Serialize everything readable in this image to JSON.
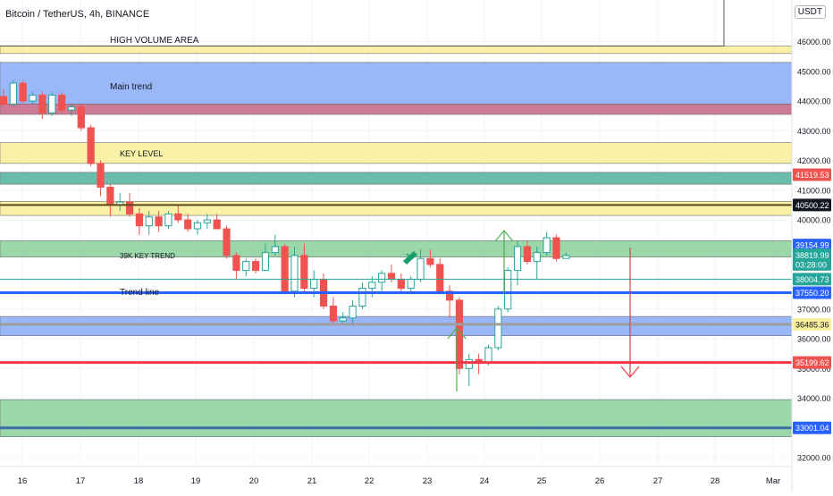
{
  "header": {
    "symbol_title": "Bitcoin / TetherUS, 4h, BINANCE",
    "currency": "USDT"
  },
  "colors": {
    "bull": "#26a69a",
    "bear": "#ef5350",
    "yellow_zone": "#f7ef9c",
    "blue_zone": "#8fb0f7",
    "green_zone": "#8fd3a0",
    "teal_zone": "#5bb5a2",
    "pink_zone": "#c76b8a",
    "blue_line": "#2962ff",
    "red_line": "#f23645",
    "yellow_line": "#e6d96a"
  },
  "chart_data": {
    "type": "candlestick",
    "title": "Bitcoin / TetherUS, 4h, BINANCE",
    "ylim": [
      31700,
      47400
    ],
    "y_ticks": [
      "32000.00",
      "33000.00",
      "34000.00",
      "35000.00",
      "36000.00",
      "37000.00",
      "38000.00",
      "39000.00",
      "40000.00",
      "41000.00",
      "42000.00",
      "43000.00",
      "44000.00",
      "45000.00",
      "46000.00"
    ],
    "x_ticks": [
      "16",
      "17",
      "18",
      "19",
      "20",
      "21",
      "22",
      "23",
      "24",
      "25",
      "26",
      "27",
      "28",
      "Mar"
    ],
    "candles": [
      {
        "o": 44150,
        "h": 44400,
        "l": 43850,
        "c": 43900
      },
      {
        "o": 43900,
        "h": 44700,
        "l": 43800,
        "c": 44600
      },
      {
        "o": 44600,
        "h": 44700,
        "l": 43900,
        "c": 44000
      },
      {
        "o": 44000,
        "h": 44300,
        "l": 43900,
        "c": 44200
      },
      {
        "o": 44200,
        "h": 44300,
        "l": 43400,
        "c": 43600
      },
      {
        "o": 43600,
        "h": 44300,
        "l": 43500,
        "c": 44200
      },
      {
        "o": 44200,
        "h": 44300,
        "l": 43600,
        "c": 43700
      },
      {
        "o": 43700,
        "h": 43900,
        "l": 43500,
        "c": 43800
      },
      {
        "o": 43800,
        "h": 43900,
        "l": 43000,
        "c": 43100
      },
      {
        "o": 43100,
        "h": 43200,
        "l": 41800,
        "c": 41900
      },
      {
        "o": 41900,
        "h": 42000,
        "l": 40800,
        "c": 41100
      },
      {
        "o": 41100,
        "h": 41200,
        "l": 40100,
        "c": 40500
      },
      {
        "o": 40500,
        "h": 40900,
        "l": 40300,
        "c": 40600
      },
      {
        "o": 40600,
        "h": 40900,
        "l": 40100,
        "c": 40200
      },
      {
        "o": 40200,
        "h": 40400,
        "l": 39500,
        "c": 39800
      },
      {
        "o": 39800,
        "h": 40300,
        "l": 39500,
        "c": 40100
      },
      {
        "o": 40100,
        "h": 40300,
        "l": 39600,
        "c": 39800
      },
      {
        "o": 39800,
        "h": 40300,
        "l": 39700,
        "c": 40200
      },
      {
        "o": 40200,
        "h": 40500,
        "l": 39900,
        "c": 40000
      },
      {
        "o": 40000,
        "h": 40200,
        "l": 39600,
        "c": 39700
      },
      {
        "o": 39700,
        "h": 40000,
        "l": 39500,
        "c": 39900
      },
      {
        "o": 39900,
        "h": 40200,
        "l": 39700,
        "c": 40000
      },
      {
        "o": 40000,
        "h": 40200,
        "l": 39700,
        "c": 39700
      },
      {
        "o": 39700,
        "h": 39800,
        "l": 38700,
        "c": 38800
      },
      {
        "o": 38800,
        "h": 38900,
        "l": 38000,
        "c": 38300
      },
      {
        "o": 38300,
        "h": 38700,
        "l": 38100,
        "c": 38600
      },
      {
        "o": 38600,
        "h": 38700,
        "l": 38200,
        "c": 38300
      },
      {
        "o": 38300,
        "h": 39200,
        "l": 38300,
        "c": 38900
      },
      {
        "o": 38900,
        "h": 39500,
        "l": 38800,
        "c": 39100
      },
      {
        "o": 39100,
        "h": 39200,
        "l": 37500,
        "c": 37600
      },
      {
        "o": 37600,
        "h": 39100,
        "l": 37400,
        "c": 38800
      },
      {
        "o": 38800,
        "h": 39200,
        "l": 37600,
        "c": 37700
      },
      {
        "o": 37700,
        "h": 38300,
        "l": 37400,
        "c": 38000
      },
      {
        "o": 38000,
        "h": 38200,
        "l": 37000,
        "c": 37100
      },
      {
        "o": 37100,
        "h": 37400,
        "l": 36500,
        "c": 36600
      },
      {
        "o": 36600,
        "h": 36900,
        "l": 36500,
        "c": 36700
      },
      {
        "o": 36700,
        "h": 37300,
        "l": 36500,
        "c": 37100
      },
      {
        "o": 37100,
        "h": 37900,
        "l": 37000,
        "c": 37700
      },
      {
        "o": 37700,
        "h": 38100,
        "l": 37400,
        "c": 37900
      },
      {
        "o": 37900,
        "h": 38300,
        "l": 37600,
        "c": 38200
      },
      {
        "o": 38200,
        "h": 38500,
        "l": 37900,
        "c": 38000
      },
      {
        "o": 38000,
        "h": 38200,
        "l": 37600,
        "c": 37700
      },
      {
        "o": 37700,
        "h": 38100,
        "l": 37500,
        "c": 38000
      },
      {
        "o": 38000,
        "h": 39000,
        "l": 37900,
        "c": 38700
      },
      {
        "o": 38700,
        "h": 39000,
        "l": 38400,
        "c": 38500
      },
      {
        "o": 38500,
        "h": 38700,
        "l": 37500,
        "c": 37600
      },
      {
        "o": 37600,
        "h": 37800,
        "l": 36700,
        "c": 37300
      },
      {
        "o": 37300,
        "h": 37400,
        "l": 34800,
        "c": 35000
      },
      {
        "o": 35000,
        "h": 35500,
        "l": 34400,
        "c": 35300
      },
      {
        "o": 35300,
        "h": 35500,
        "l": 34800,
        "c": 35200
      },
      {
        "o": 35200,
        "h": 35800,
        "l": 35100,
        "c": 35700
      },
      {
        "o": 35700,
        "h": 37100,
        "l": 35600,
        "c": 37000
      },
      {
        "o": 37000,
        "h": 38400,
        "l": 36900,
        "c": 38300
      },
      {
        "o": 38300,
        "h": 39300,
        "l": 37800,
        "c": 39100
      },
      {
        "o": 39100,
        "h": 39300,
        "l": 38500,
        "c": 38600
      },
      {
        "o": 38600,
        "h": 39100,
        "l": 38000,
        "c": 38900
      },
      {
        "o": 38900,
        "h": 39600,
        "l": 38800,
        "c": 39400
      },
      {
        "o": 39400,
        "h": 39500,
        "l": 38600,
        "c": 38700
      },
      {
        "o": 38700,
        "h": 38900,
        "l": 38700,
        "c": 38800
      }
    ],
    "zones": [
      {
        "name": "high-volume-zone",
        "low": 45600,
        "high": 45850,
        "color": "#f7ef9c"
      },
      {
        "name": "main-trend-zone",
        "low": 43900,
        "high": 45300,
        "color": "#8fb0f7"
      },
      {
        "name": "main-trend-pink-zone",
        "low": 43550,
        "high": 43900,
        "color": "#c76b8a"
      },
      {
        "name": "key-level-zone",
        "low": 41900,
        "high": 42600,
        "color": "#f7ef9c"
      },
      {
        "name": "teal-zone",
        "low": 41200,
        "high": 41600,
        "color": "#5bb5a2"
      },
      {
        "name": "yellow-40500-zone",
        "low": 40150,
        "high": 40620,
        "color": "#f7ef9c"
      },
      {
        "name": "key-trend-39k-zone",
        "low": 38750,
        "high": 39300,
        "color": "#8fd3a0"
      },
      {
        "name": "blue-36485-zone",
        "low": 36100,
        "high": 36750,
        "color": "#8fb0f7"
      },
      {
        "name": "green-bottom-zone",
        "low": 32700,
        "high": 33950,
        "color": "#8fd3a0"
      }
    ],
    "lines": [
      {
        "name": "trend-line",
        "price": 37550.2,
        "color": "#2962ff",
        "width": 3
      },
      {
        "name": "red-support-line",
        "price": 35199.62,
        "color": "#f23645",
        "width": 3
      },
      {
        "name": "yellow-40500-line",
        "price": 40500.22,
        "color": "#5a4a1a",
        "width": 2
      },
      {
        "name": "teal-38004-line",
        "price": 38004.73,
        "color": "#26a69a",
        "width": 1
      },
      {
        "name": "blue-33001-line",
        "price": 33001.04,
        "color": "#3a6ea5",
        "width": 3
      },
      {
        "name": "grey-36485-line",
        "price": 36485.36,
        "color": "#9e9e9e",
        "width": 3
      }
    ],
    "annotations": [
      "HIGH VOLUME AREA",
      "Main trend",
      "KEY LEVEL",
      "39K KEY TREND",
      "Trend line"
    ],
    "price_labels": [
      {
        "text": "41519.53",
        "price": 41519.53,
        "bg": "#ef5350",
        "fg": "#ffffff"
      },
      {
        "text": "40500.22",
        "price": 40500.22,
        "bg": "#131722",
        "fg": "#ffffff"
      },
      {
        "text": "39154.99",
        "price": 39154.99,
        "bg": "#2962ff",
        "fg": "#ffffff"
      },
      {
        "text": "38819.99",
        "price": 38819.99,
        "bg": "#26a69a",
        "fg": "#ffffff"
      },
      {
        "text": "03:28:00",
        "price": 38500,
        "bg": "#26a69a",
        "fg": "#ffffff"
      },
      {
        "text": "38004.73",
        "price": 38004.73,
        "bg": "#26a69a",
        "fg": "#ffffff"
      },
      {
        "text": "37550.20",
        "price": 37550.2,
        "bg": "#2962ff",
        "fg": "#ffffff"
      },
      {
        "text": "36485.36",
        "price": 36485.36,
        "bg": "#f7ef9c",
        "fg": "#131722"
      },
      {
        "text": "35199.62",
        "price": 35199.62,
        "bg": "#ef5350",
        "fg": "#ffffff"
      },
      {
        "text": "33001.04",
        "price": 33001.04,
        "bg": "#2962ff",
        "fg": "#ffffff"
      }
    ]
  }
}
